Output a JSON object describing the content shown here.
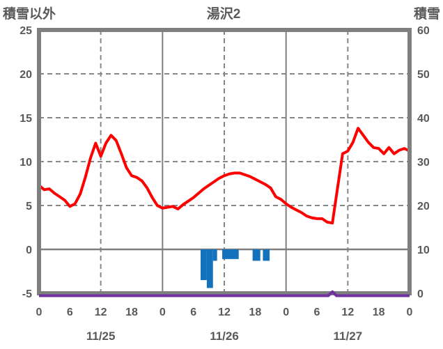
{
  "header": {
    "left_axis_title": "積雪以外",
    "chart_title": "湯沢2",
    "right_axis_title": "積雪"
  },
  "colors": {
    "text": "#595959",
    "frame": "#7f7f7f",
    "grid": "#878787",
    "main_line": "#ff0000",
    "bars": "#1272bc",
    "snow_depth_line": "#7030a0",
    "background": "#ffffff"
  },
  "chart_data": {
    "type": "line",
    "title": "湯沢2",
    "left_axis": {
      "label": "積雪以外",
      "min": -5,
      "max": 25,
      "ticks": [
        25,
        20,
        15,
        10,
        5,
        0,
        -5
      ]
    },
    "right_axis": {
      "label": "積雪",
      "min": 0,
      "max": 60,
      "ticks": [
        60,
        50,
        40,
        30,
        20,
        10,
        0
      ]
    },
    "x_axis": {
      "total_hours": 72,
      "hour_labels": [
        {
          "t": 0,
          "label": "0"
        },
        {
          "t": 6,
          "label": "6"
        },
        {
          "t": 12,
          "label": "12"
        },
        {
          "t": 18,
          "label": "18"
        },
        {
          "t": 24,
          "label": "0"
        },
        {
          "t": 30,
          "label": "6"
        },
        {
          "t": 36,
          "label": "12"
        },
        {
          "t": 42,
          "label": "18"
        },
        {
          "t": 48,
          "label": "0"
        },
        {
          "t": 54,
          "label": "6"
        },
        {
          "t": 60,
          "label": "12"
        },
        {
          "t": 66,
          "label": "18"
        },
        {
          "t": 72,
          "label": "0"
        }
      ],
      "date_labels": [
        {
          "t": 12,
          "label": "11/25"
        },
        {
          "t": 36,
          "label": "11/26"
        },
        {
          "t": 60,
          "label": "11/27"
        }
      ],
      "solid_vlines_t": [
        24,
        48
      ],
      "dashed_vlines_t": [
        12,
        36,
        60
      ]
    },
    "grid": {
      "dashed_hlines_left_values": [
        20,
        15,
        10,
        5
      ],
      "zero_line_left_value": 0
    },
    "series": [
      {
        "id": "main-line",
        "type": "line",
        "axis": "left",
        "values_hourly": [
          7.3,
          6.8,
          6.9,
          6.4,
          6.0,
          5.6,
          4.9,
          5.2,
          6.3,
          8.2,
          10.4,
          12.1,
          10.6,
          12.1,
          13.0,
          12.4,
          10.9,
          9.3,
          8.4,
          8.2,
          7.8,
          7.0,
          5.9,
          5.0,
          4.7,
          4.8,
          4.9,
          4.6,
          5.1,
          5.5,
          5.9,
          6.4,
          6.9,
          7.3,
          7.7,
          8.1,
          8.4,
          8.6,
          8.7,
          8.7,
          8.5,
          8.3,
          8.0,
          7.7,
          7.4,
          7.0,
          6.0,
          5.7,
          5.2,
          4.8,
          4.5,
          4.2,
          3.8,
          3.6,
          3.5,
          3.5,
          3.1,
          3.0,
          7.0,
          10.9,
          11.2,
          12.2,
          13.8,
          13.0,
          12.2,
          11.6,
          11.5,
          10.9,
          11.6,
          10.9,
          11.3,
          11.5,
          11.2
        ]
      },
      {
        "id": "bars",
        "type": "bar",
        "axis": "left",
        "baseline": 0,
        "segments": [
          {
            "t0": 31.4,
            "t1": 32.6,
            "value": -3.5
          },
          {
            "t0": 32.6,
            "t1": 33.8,
            "value": -4.4
          },
          {
            "t0": 33.8,
            "t1": 34.6,
            "value": -1.3
          },
          {
            "t0": 35.6,
            "t1": 38.8,
            "value": -1.1
          },
          {
            "t0": 41.5,
            "t1": 43.0,
            "value": -1.3
          },
          {
            "t0": 43.5,
            "t1": 44.8,
            "value": -1.3
          }
        ]
      },
      {
        "id": "snow-depth-line",
        "type": "line",
        "axis": "right",
        "points": [
          {
            "t": 0,
            "v": 0
          },
          {
            "t": 56.2,
            "v": 0
          },
          {
            "t": 57.0,
            "v": 0.9
          },
          {
            "t": 57.8,
            "v": 0
          },
          {
            "t": 72,
            "v": 0
          }
        ]
      }
    ]
  }
}
